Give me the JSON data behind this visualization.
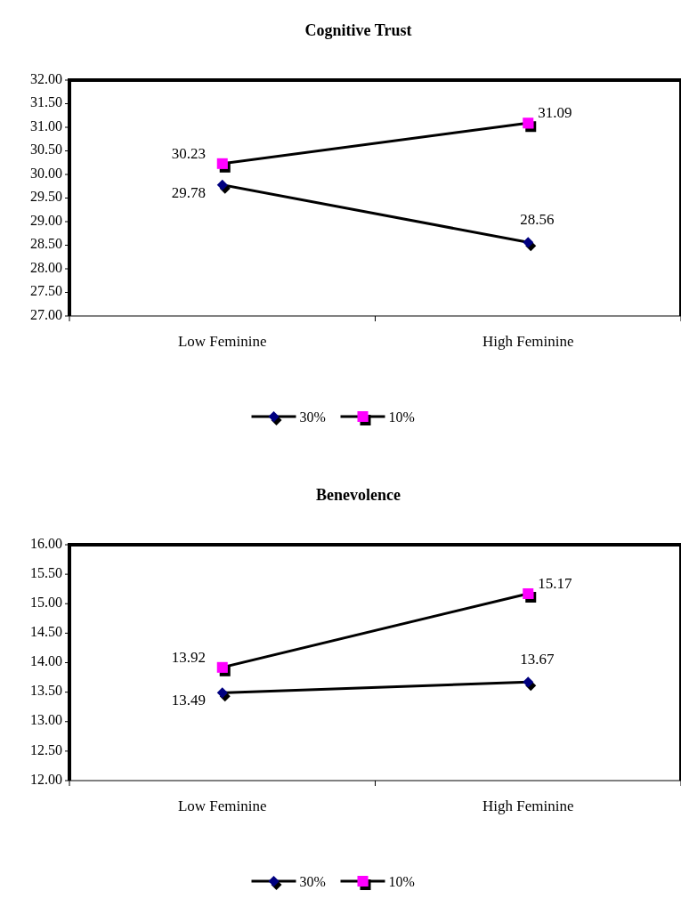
{
  "chart_data": [
    {
      "type": "line",
      "title": "Cognitive Trust",
      "categories": [
        "Low Feminine",
        "High Feminine"
      ],
      "series": [
        {
          "name": "30%",
          "color": "#000080",
          "marker": "diamond",
          "values": [
            29.78,
            28.56
          ]
        },
        {
          "name": "10%",
          "color": "#ff00ff",
          "marker": "square",
          "values": [
            30.23,
            31.09
          ]
        }
      ],
      "ylim": [
        27,
        32
      ],
      "yticks": [
        {
          "value": 27,
          "label": "27.00"
        },
        {
          "value": 27.5,
          "label": "27.50"
        },
        {
          "value": 28,
          "label": "28.00"
        },
        {
          "value": 28.5,
          "label": "28.50"
        },
        {
          "value": 29,
          "label": "29.00"
        },
        {
          "value": 29.5,
          "label": "29.50"
        },
        {
          "value": 30,
          "label": "30.00"
        },
        {
          "value": 30.5,
          "label": "30.50"
        },
        {
          "value": 31,
          "label": "31.00"
        },
        {
          "value": 31.5,
          "label": "31.50"
        },
        {
          "value": 32,
          "label": "32.00"
        }
      ],
      "data_labels": true,
      "legend": "bottom",
      "grid": false
    },
    {
      "type": "line",
      "title": "Benevolence",
      "categories": [
        "Low Feminine",
        "High Feminine"
      ],
      "series": [
        {
          "name": "30%",
          "color": "#000080",
          "marker": "diamond",
          "values": [
            13.49,
            13.67
          ]
        },
        {
          "name": "10%",
          "color": "#ff00ff",
          "marker": "square",
          "values": [
            13.92,
            15.17
          ]
        }
      ],
      "ylim": [
        12,
        16
      ],
      "yticks": [
        {
          "value": 12,
          "label": "12.00"
        },
        {
          "value": 12.5,
          "label": "12.50"
        },
        {
          "value": 13,
          "label": "13.00"
        },
        {
          "value": 13.5,
          "label": "13.50"
        },
        {
          "value": 14,
          "label": "14.00"
        },
        {
          "value": 14.5,
          "label": "14.50"
        },
        {
          "value": 15,
          "label": "15.00"
        },
        {
          "value": 15.5,
          "label": "15.50"
        },
        {
          "value": 16,
          "label": "16.00"
        }
      ],
      "data_labels": true,
      "legend": "bottom",
      "grid": false
    }
  ]
}
